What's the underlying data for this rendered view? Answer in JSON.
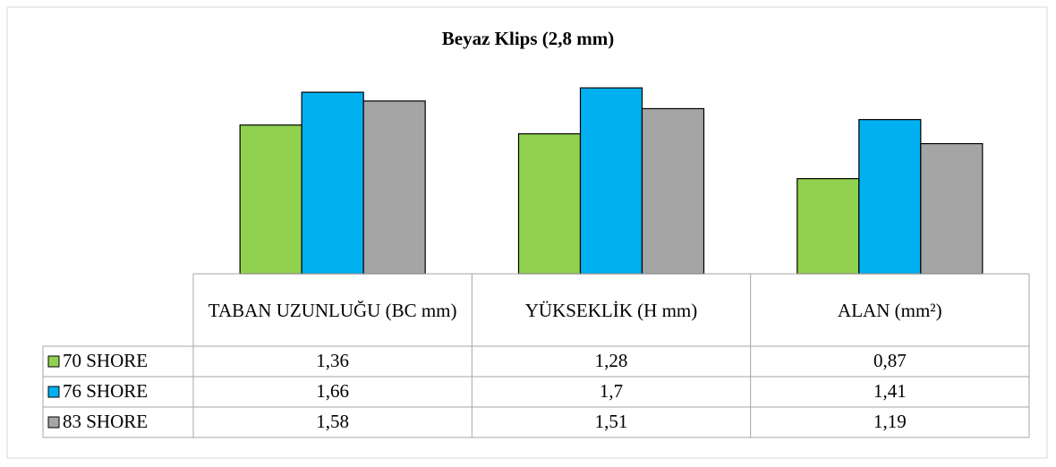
{
  "chart_data": {
    "type": "bar",
    "title": "Beyaz Klips (2,8 mm)",
    "categories": [
      "TABAN UZUNLUĞU (BC mm)",
      "YÜKSEKLİK (H mm)",
      "ALAN (mm²)"
    ],
    "series": [
      {
        "name": "70 SHORE",
        "color": "#92d050",
        "values": [
          1.36,
          1.28,
          0.87
        ],
        "value_labels": [
          "1,36",
          "1,28",
          "0,87"
        ]
      },
      {
        "name": "76 SHORE",
        "color": "#00b0f0",
        "values": [
          1.66,
          1.7,
          1.41
        ],
        "value_labels": [
          "1,66",
          "1,7",
          "1,41"
        ]
      },
      {
        "name": "83 SHORE",
        "color": "#a5a5a5",
        "values": [
          1.58,
          1.51,
          1.19
        ],
        "value_labels": [
          "1,58",
          "1,51",
          "1,19"
        ]
      }
    ],
    "ylim": [
      0,
      1.8
    ]
  }
}
